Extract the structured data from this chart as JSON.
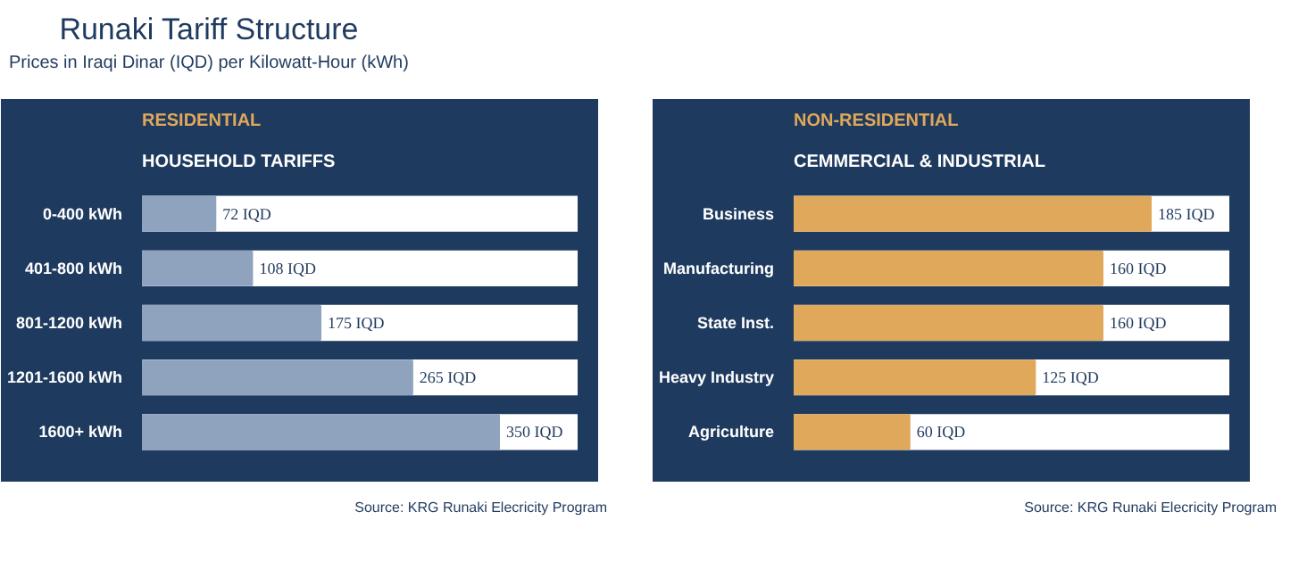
{
  "chart_data": [
    {
      "type": "bar",
      "orientation": "horizontal",
      "title": "RESIDENTIAL",
      "subtitle": "HOUSEHOLD TARIFFS",
      "categories": [
        "0-400 kWh",
        "401-800 kWh",
        "801-1200 kWh",
        "1201-1600 kWh",
        "1600+ kWh"
      ],
      "values": [
        72,
        108,
        175,
        265,
        350
      ],
      "color": "#8fa3bf",
      "value_labels": [
        "72 IQD",
        "108 IQD",
        "175 IQD",
        "265 IQD",
        "350 IQD"
      ],
      "annotations": [
        "Runaki Tariff Structure",
        "Prices in Iraqi Dinar (IQD) per Kilowatt-Hour (kWh)",
        "Source: KRG Runaki Elecricity Program"
      ]
    },
    {
      "type": "bar",
      "orientation": "horizontal",
      "title": "NON-RESIDENTIAL",
      "subtitle": "CEMMERCIAL & INDUSTRIAL",
      "categories": [
        "Business",
        "Manufacturing",
        "State Inst.",
        "Heavy Industry",
        "Agriculture"
      ],
      "values": [
        185,
        160,
        160,
        125,
        60
      ],
      "color": "#e0a85a",
      "value_labels": [
        "185 IQD",
        "160 IQD",
        "160 IQD",
        "125 IQD",
        "60 IQD"
      ],
      "annotations": [
        "Source: KRG Runaki Elecricity Program"
      ]
    }
  ]
}
